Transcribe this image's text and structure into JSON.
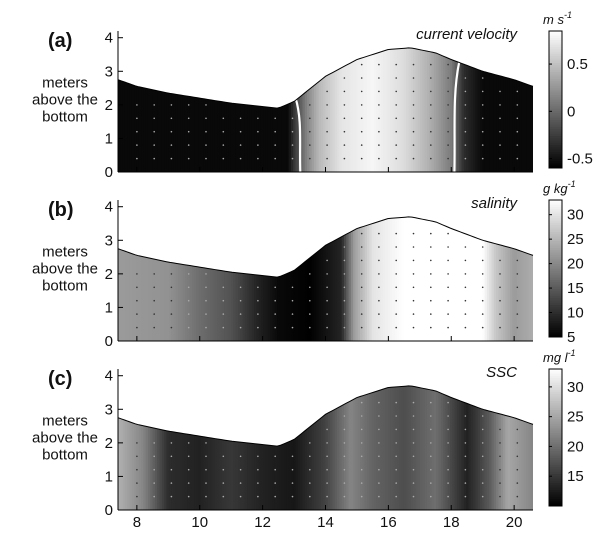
{
  "chart_data": [
    {
      "type": "heatmap",
      "panel_label": "(a)",
      "title": "current velocity",
      "colorbar_label": "m s",
      "colorbar_label_sup": "-1",
      "colorbar_range": [
        -0.6,
        0.85
      ],
      "colorbar_ticks": [
        0.5,
        0,
        -0.5
      ],
      "colorbar_tick_labels": [
        "0.5",
        "0",
        "-0.5"
      ],
      "xlim": [
        7.4,
        20.6
      ],
      "ylim": [
        0,
        4.2
      ],
      "yticks": [
        0,
        1,
        2,
        3,
        4
      ],
      "ylabel": "meters above the bottom",
      "xticks": [],
      "colormap": "gray",
      "grid": false,
      "columns": [
        {
          "x": 7.4,
          "v": -0.55
        },
        {
          "x": 12.8,
          "v": -0.55
        },
        {
          "x": 13.0,
          "v": -0.3
        },
        {
          "x": 13.4,
          "v": 0.15
        },
        {
          "x": 13.8,
          "v": 0.45
        },
        {
          "x": 14.5,
          "v": 0.7
        },
        {
          "x": 15.5,
          "v": 0.8
        },
        {
          "x": 16.5,
          "v": 0.65
        },
        {
          "x": 17.3,
          "v": 0.4
        },
        {
          "x": 18.0,
          "v": 0.1
        },
        {
          "x": 18.4,
          "v": -0.35
        },
        {
          "x": 19.0,
          "v": -0.55
        },
        {
          "x": 20.6,
          "v": -0.55
        }
      ],
      "white_contours_x": [
        13.2,
        18.1
      ]
    },
    {
      "type": "heatmap",
      "panel_label": "(b)",
      "title": "salinity",
      "colorbar_label": "g kg",
      "colorbar_label_sup": "-1",
      "colorbar_range": [
        5,
        33
      ],
      "colorbar_ticks": [
        30,
        25,
        20,
        15,
        10,
        5
      ],
      "colorbar_tick_labels": [
        "30",
        "25",
        "20",
        "15",
        "10",
        "5"
      ],
      "xlim": [
        7.4,
        20.6
      ],
      "ylim": [
        0,
        4.2
      ],
      "yticks": [
        0,
        1,
        2,
        3,
        4
      ],
      "ylabel": "meters above the bottom",
      "xticks": [],
      "colormap": "gray",
      "grid": false,
      "columns": [
        {
          "x": 7.4,
          "v": 22
        },
        {
          "x": 9.0,
          "v": 21
        },
        {
          "x": 10.0,
          "v": 17
        },
        {
          "x": 11.0,
          "v": 14
        },
        {
          "x": 11.8,
          "v": 9
        },
        {
          "x": 12.5,
          "v": 6
        },
        {
          "x": 13.5,
          "v": 5
        },
        {
          "x": 14.5,
          "v": 9
        },
        {
          "x": 14.9,
          "v": 22
        },
        {
          "x": 15.5,
          "v": 30
        },
        {
          "x": 16.5,
          "v": 33
        },
        {
          "x": 19.0,
          "v": 33
        },
        {
          "x": 19.4,
          "v": 27
        },
        {
          "x": 20.0,
          "v": 22
        },
        {
          "x": 20.6,
          "v": 24
        }
      ]
    },
    {
      "type": "heatmap",
      "panel_label": "(c)",
      "title": "SSC",
      "colorbar_label": "mg l",
      "colorbar_label_sup": "-1",
      "colorbar_range": [
        10,
        33
      ],
      "colorbar_ticks": [
        30,
        25,
        20,
        15
      ],
      "colorbar_tick_labels": [
        "30",
        "25",
        "20",
        "15"
      ],
      "xlim": [
        7.4,
        20.6
      ],
      "ylim": [
        0,
        4.2
      ],
      "yticks": [
        0,
        1,
        2,
        3,
        4
      ],
      "ylabel": "meters above the bottom",
      "xticks": [
        8,
        10,
        12,
        14,
        16,
        18,
        20
      ],
      "colormap": "gray",
      "grid": false,
      "columns": [
        {
          "x": 7.4,
          "v": 26
        },
        {
          "x": 8.2,
          "v": 22
        },
        {
          "x": 9.0,
          "v": 14
        },
        {
          "x": 10.0,
          "v": 13
        },
        {
          "x": 11.0,
          "v": 15
        },
        {
          "x": 12.0,
          "v": 13
        },
        {
          "x": 13.0,
          "v": 12
        },
        {
          "x": 14.0,
          "v": 16
        },
        {
          "x": 14.8,
          "v": 22
        },
        {
          "x": 15.5,
          "v": 19
        },
        {
          "x": 16.5,
          "v": 17
        },
        {
          "x": 17.5,
          "v": 20
        },
        {
          "x": 18.5,
          "v": 13
        },
        {
          "x": 19.2,
          "v": 18
        },
        {
          "x": 19.8,
          "v": 25
        },
        {
          "x": 20.6,
          "v": 22
        }
      ]
    }
  ],
  "surface_profile": {
    "x": [
      7.4,
      8,
      9,
      10,
      11,
      12,
      12.5,
      13,
      14,
      15,
      16,
      16.7,
      17.5,
      18,
      19,
      20,
      20.6
    ],
    "y": [
      2.75,
      2.55,
      2.35,
      2.2,
      2.05,
      1.95,
      1.9,
      2.1,
      2.85,
      3.35,
      3.65,
      3.7,
      3.55,
      3.35,
      3.0,
      2.75,
      2.55
    ]
  },
  "y_axis_label_lines": [
    "meters",
    "above the",
    "bottom"
  ]
}
